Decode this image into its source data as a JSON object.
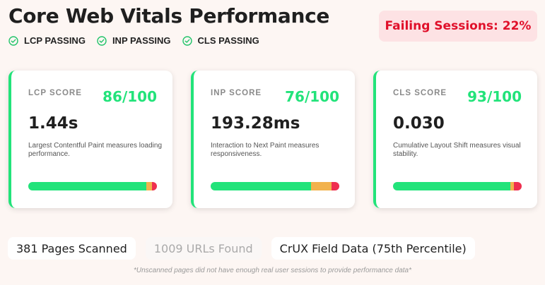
{
  "title": "Core Web Vitals Performance",
  "failing_sessions": "Failing Sessions: 22%",
  "status": [
    {
      "label": "LCP PASSING",
      "icon": "check-circle-icon"
    },
    {
      "label": "INP PASSING",
      "icon": "check-circle-icon"
    },
    {
      "label": "CLS PASSING",
      "icon": "check-circle-icon"
    }
  ],
  "cards": [
    {
      "label": "LCP SCORE",
      "score": "86/100",
      "value": "1.44s",
      "description": "Largest Contentful Paint measures loading performance.",
      "distribution": {
        "good": 92,
        "needs_improvement": 4,
        "poor": 4
      }
    },
    {
      "label": "INP SCORE",
      "score": "76/100",
      "value": "193.28ms",
      "description": "Interaction to Next Paint measures responsiveness.",
      "distribution": {
        "good": 78,
        "needs_improvement": 16,
        "poor": 6
      }
    },
    {
      "label": "CLS SCORE",
      "score": "93/100",
      "value": "0.030",
      "description": "Cumulative Layout Shift measures visual stability.",
      "distribution": {
        "good": 91,
        "needs_improvement": 3,
        "poor": 6
      }
    }
  ],
  "chips": {
    "pages_scanned": "381 Pages Scanned",
    "urls_found": "1009 URLs Found",
    "data_source": "CrUX Field Data (75th Percentile)"
  },
  "footnote": "*Unscanned pages did not have enough real user sessions to provide performance data*",
  "colors": {
    "good": "#22e37a",
    "needs_improvement": "#f2b24d",
    "poor": "#ef2f4f",
    "failing": "#e0102a"
  }
}
